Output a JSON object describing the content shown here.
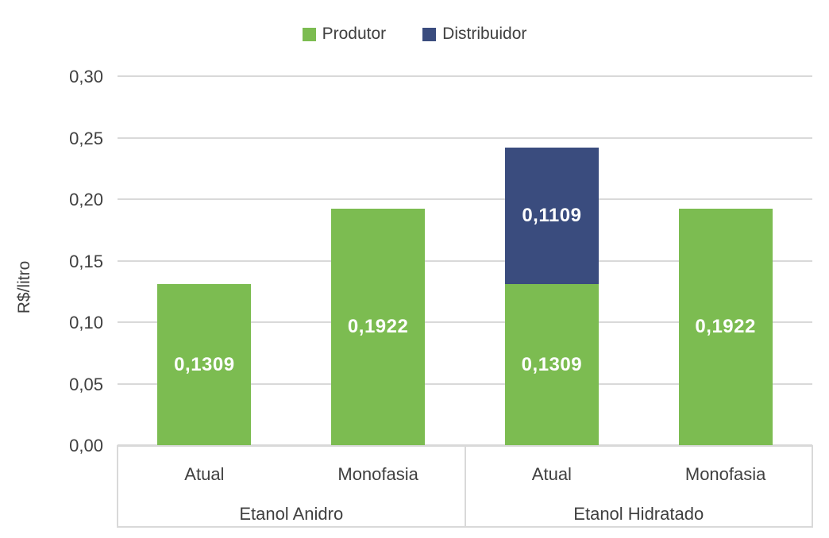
{
  "chart_data": {
    "type": "bar",
    "stacked": true,
    "title": "",
    "ylabel": "R$/litro",
    "ylim": [
      0,
      0.3
    ],
    "grid": true,
    "legend_position": "top",
    "series": [
      {
        "name": "Produtor",
        "color": "#7CBC51"
      },
      {
        "name": "Distribuidor",
        "color": "#3A4C7E"
      }
    ],
    "yticks": [
      {
        "value": 0.3,
        "label": "0,30"
      },
      {
        "value": 0.25,
        "label": "0,25"
      },
      {
        "value": 0.2,
        "label": "0,20"
      },
      {
        "value": 0.15,
        "label": "0,15"
      },
      {
        "value": 0.1,
        "label": "0,10"
      },
      {
        "value": 0.05,
        "label": "0,05"
      },
      {
        "value": 0.0,
        "label": "0,00"
      }
    ],
    "groups": [
      {
        "label": "Etanol Anidro",
        "bars": [
          {
            "label": "Atual",
            "segments": [
              {
                "series": "Produtor",
                "value": 0.1309,
                "display": "0,1309"
              }
            ]
          },
          {
            "label": "Monofasia",
            "segments": [
              {
                "series": "Produtor",
                "value": 0.1922,
                "display": "0,1922"
              }
            ]
          }
        ]
      },
      {
        "label": "Etanol Hidratado",
        "bars": [
          {
            "label": "Atual",
            "segments": [
              {
                "series": "Produtor",
                "value": 0.1309,
                "display": "0,1309"
              },
              {
                "series": "Distribuidor",
                "value": 0.1109,
                "display": "0,1109"
              }
            ]
          },
          {
            "label": "Monofasia",
            "segments": [
              {
                "series": "Produtor",
                "value": 0.1922,
                "display": "0,1922"
              }
            ]
          }
        ]
      }
    ]
  },
  "colors": {
    "produtor": "#7CBC51",
    "distribuidor": "#3A4C7E",
    "gridline": "#D9D9D9",
    "axis_text": "#404040",
    "bar_label_text": "#FFFFFF",
    "background": "#FFFFFF"
  }
}
